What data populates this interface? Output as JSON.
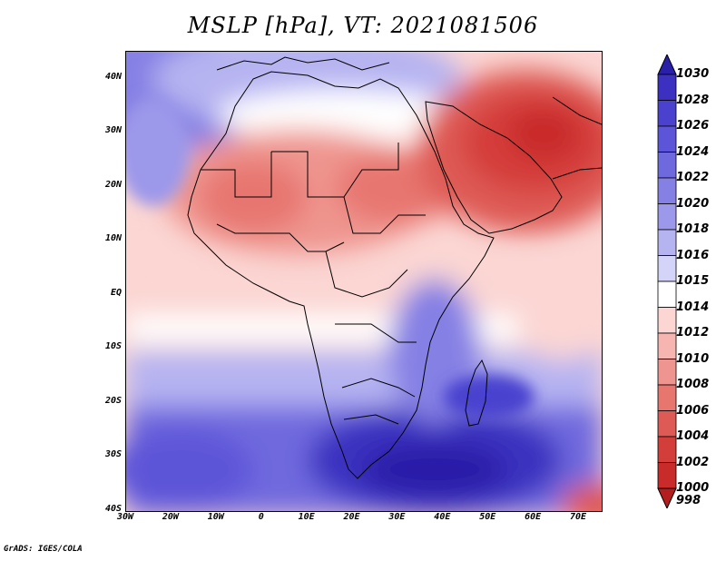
{
  "title": "MSLP [hPa], VT: 2021081506",
  "footer": "GrADS: IGES/COLA",
  "map": {
    "projection": "lat-lon",
    "lon_range": [
      -30,
      75
    ],
    "lat_range": [
      -40,
      45
    ],
    "lat_ticks": [
      {
        "lat": 40,
        "label": "40N"
      },
      {
        "lat": 30,
        "label": "30N"
      },
      {
        "lat": 20,
        "label": "20N"
      },
      {
        "lat": 10,
        "label": "10N"
      },
      {
        "lat": 0,
        "label": "EQ"
      },
      {
        "lat": -10,
        "label": "10S"
      },
      {
        "lat": -20,
        "label": "20S"
      },
      {
        "lat": -30,
        "label": "30S"
      },
      {
        "lat": -40,
        "label": "40S"
      }
    ],
    "lon_ticks": [
      {
        "lon": -30,
        "label": "30W"
      },
      {
        "lon": -20,
        "label": "20W"
      },
      {
        "lon": -10,
        "label": "10W"
      },
      {
        "lon": 0,
        "label": "0"
      },
      {
        "lon": 10,
        "label": "10E"
      },
      {
        "lon": 20,
        "label": "20E"
      },
      {
        "lon": 30,
        "label": "30E"
      },
      {
        "lon": 40,
        "label": "40E"
      },
      {
        "lon": 50,
        "label": "50E"
      },
      {
        "lon": 60,
        "label": "60E"
      },
      {
        "lon": 70,
        "label": "70E"
      }
    ]
  },
  "colorbar": {
    "levels": [
      "1030",
      "1028",
      "1026",
      "1024",
      "1022",
      "1020",
      "1018",
      "1016",
      "1015",
      "1014",
      "1012",
      "1010",
      "1008",
      "1006",
      "1004",
      "1002",
      "1000",
      "998"
    ],
    "colors": [
      "#2a1fa8",
      "#3b30c0",
      "#4a42cf",
      "#5d55d8",
      "#6f69de",
      "#8580e4",
      "#9c98ea",
      "#b6b3f1",
      "#d4d3f8",
      "#ffffff",
      "#fbd6d3",
      "#f6b5b0",
      "#ef958f",
      "#e7766f",
      "#de5a54",
      "#d43e3a",
      "#c92a2a",
      "#b51e1e"
    ]
  }
}
